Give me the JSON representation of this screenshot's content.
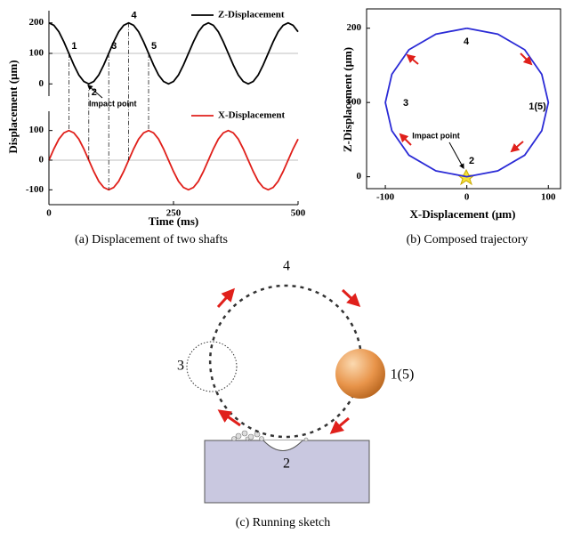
{
  "chart_data": [
    {
      "type": "line",
      "y_label": "Displacement (μm)",
      "xlim": [
        0,
        500
      ],
      "ylim": [
        -40,
        240
      ],
      "yticks": [
        0,
        100,
        200
      ],
      "reference_line": 100,
      "x": [
        0,
        10,
        20,
        30,
        40,
        50,
        60,
        70,
        80,
        90,
        100,
        110,
        120,
        130,
        140,
        150,
        160,
        170,
        180,
        190,
        200,
        210,
        220,
        230,
        240,
        250,
        260,
        270,
        280,
        290,
        300,
        310,
        320,
        330,
        340,
        350,
        360,
        370,
        380,
        390,
        400,
        410,
        420,
        430,
        440,
        450,
        460,
        470,
        480,
        490,
        500
      ],
      "series": [
        {
          "name": "Z-Displacement",
          "color": "#000000",
          "values": [
            200,
            192,
            171,
            138,
            100,
            62,
            29,
            8,
            0,
            8,
            29,
            62,
            100,
            138,
            171,
            192,
            200,
            192,
            171,
            138,
            100,
            62,
            29,
            8,
            0,
            8,
            29,
            62,
            100,
            138,
            171,
            192,
            200,
            192,
            171,
            138,
            100,
            62,
            29,
            8,
            0,
            8,
            29,
            62,
            100,
            138,
            171,
            192,
            200,
            192,
            171
          ]
        }
      ],
      "markers": [
        {
          "label": "1",
          "x": 40
        },
        {
          "label": "2",
          "x": 80
        },
        {
          "label": "3",
          "x": 120
        },
        {
          "label": "4",
          "x": 160
        },
        {
          "label": "5",
          "x": 200
        }
      ],
      "annotation": "Impact point"
    },
    {
      "type": "line",
      "x_label": "Time (ms)",
      "xlim": [
        0,
        500
      ],
      "xticks": [
        0,
        250,
        500
      ],
      "ylim": [
        -150,
        165
      ],
      "yticks": [
        -100,
        0,
        100
      ],
      "reference_line": 0,
      "x": [
        0,
        10,
        20,
        30,
        40,
        50,
        60,
        70,
        80,
        90,
        100,
        110,
        120,
        130,
        140,
        150,
        160,
        170,
        180,
        190,
        200,
        210,
        220,
        230,
        240,
        250,
        260,
        270,
        280,
        290,
        300,
        310,
        320,
        330,
        340,
        350,
        360,
        370,
        380,
        390,
        400,
        410,
        420,
        430,
        440,
        450,
        460,
        470,
        480,
        490,
        500
      ],
      "series": [
        {
          "name": "X-Displacement",
          "color": "#e0201b",
          "values": [
            0,
            38,
            71,
            92,
            100,
            92,
            71,
            38,
            0,
            -38,
            -71,
            -92,
            -100,
            -92,
            -71,
            -38,
            0,
            38,
            71,
            92,
            100,
            92,
            71,
            38,
            0,
            -38,
            -71,
            -92,
            -100,
            -92,
            -71,
            -38,
            0,
            38,
            71,
            92,
            100,
            92,
            71,
            38,
            0,
            -38,
            -71,
            -92,
            -100,
            -92,
            -71,
            -38,
            0,
            38,
            71
          ]
        }
      ]
    },
    {
      "type": "line",
      "x_label": "X-Displacement (μm)",
      "y_label": "Z-Displacement (μm)",
      "xlim": [
        -123,
        115
      ],
      "ylim": [
        -16,
        226
      ],
      "xticks": [
        -100,
        0,
        100
      ],
      "yticks": [
        0,
        100,
        200
      ],
      "x": [
        0,
        38,
        71,
        92,
        100,
        92,
        71,
        38,
        0,
        -38,
        -71,
        -92,
        -100,
        -92,
        -71,
        -38,
        0
      ],
      "series": [
        {
          "color": "#2b2bd6",
          "values": [
            200,
            192,
            171,
            138,
            100,
            62,
            29,
            8,
            0,
            8,
            29,
            62,
            100,
            138,
            171,
            192,
            200
          ]
        }
      ],
      "point_labels": [
        "4",
        "1(5)",
        "2",
        "3"
      ],
      "annotation": "Impact point"
    }
  ],
  "captions": [
    "(a) Displacement of two shafts",
    "(b) Composed trajectory",
    "(c) Running sketch"
  ],
  "sketch": {
    "labels": [
      "4",
      "3",
      "1(5)",
      "2"
    ]
  }
}
